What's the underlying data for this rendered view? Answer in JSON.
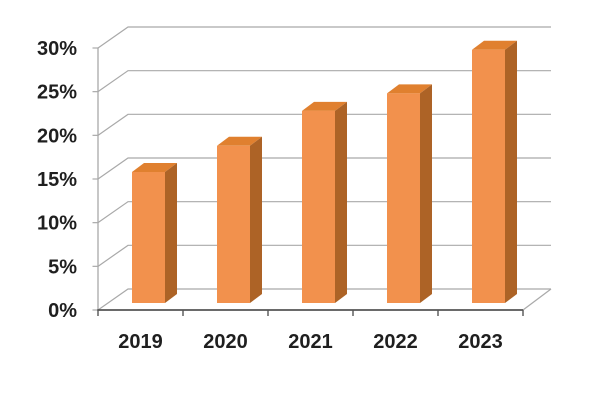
{
  "chart_data": {
    "type": "bar",
    "subtype": "3d-column",
    "categories": [
      "2019",
      "2020",
      "2021",
      "2022",
      "2023"
    ],
    "values": [
      15,
      18,
      22,
      24,
      29
    ],
    "unit": "%",
    "title": "",
    "xlabel": "",
    "ylabel": "",
    "y_ticks": [
      "0%",
      "5%",
      "10%",
      "15%",
      "20%",
      "25%",
      "30%"
    ],
    "ylim": [
      0,
      30
    ],
    "y_step": 5,
    "grid": true,
    "legend": false,
    "background": "#FFFFFF",
    "colors": {
      "bar_front": "#F2914D",
      "bar_top": "#E0802F",
      "bar_side": "#AD6326",
      "gridline": "#A9A9A9",
      "axis": "#555555",
      "text": "#1F1F1F"
    }
  }
}
